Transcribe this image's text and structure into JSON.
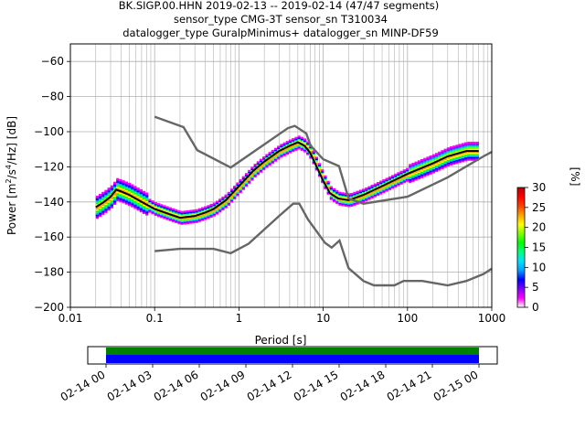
{
  "chart_data": {
    "type": "heatmap",
    "title_lines": [
      "BK.SIGP.00.HHN   2019-02-13 -- 2019-02-14  (47/47 segments)",
      "sensor_type CMG-3T sensor_sn T310034",
      "datalogger_type GuralpMinimus+ datalogger_sn MINP-DF59"
    ],
    "xlabel": "Period [s]",
    "ylabel_parts": [
      "Power [m",
      "2",
      "/s",
      "4",
      "/Hz] [dB]"
    ],
    "xscale": "log",
    "xlim": [
      0.01,
      1000
    ],
    "ylim": [
      -200,
      -50
    ],
    "xticks": [
      0.01,
      0.1,
      1,
      10,
      100,
      1000
    ],
    "xtick_labels": [
      "0.01",
      "0.1",
      "1",
      "10",
      "100",
      "1000"
    ],
    "yticks": [
      -200,
      -180,
      -160,
      -140,
      -120,
      -100,
      -80,
      -60
    ],
    "ytick_labels": [
      "−200",
      "−180",
      "−160",
      "−140",
      "−120",
      "−100",
      "−80",
      "−60"
    ],
    "grid": true,
    "colorbar": {
      "label": "[%]",
      "range": [
        0,
        30
      ],
      "ticks": [
        0,
        5,
        10,
        15,
        20,
        25,
        30
      ],
      "tick_labels": [
        "0",
        "5",
        "10",
        "15",
        "20",
        "25",
        "30"
      ],
      "colors": [
        "#ffffff",
        "#ff00ff",
        "#8000ff",
        "#0000ff",
        "#00a0ff",
        "#00e0ff",
        "#00ff80",
        "#00ff00",
        "#80ff00",
        "#ffff00",
        "#ffa000",
        "#ff4000",
        "#ff0000",
        "#b00000"
      ]
    },
    "series": [
      {
        "line_color": "#000000",
        "points": [
          [
            0.02,
            -143
          ],
          [
            0.025,
            -140
          ],
          [
            0.03,
            -137
          ],
          [
            0.035,
            -133
          ],
          [
            0.04,
            -134
          ],
          [
            0.05,
            -136
          ],
          [
            0.07,
            -140
          ],
          [
            0.1,
            -144
          ],
          [
            0.15,
            -147
          ],
          [
            0.2,
            -149
          ],
          [
            0.3,
            -148
          ],
          [
            0.4,
            -146
          ],
          [
            0.5,
            -144
          ],
          [
            0.7,
            -139
          ],
          [
            1,
            -131
          ],
          [
            1.5,
            -122
          ],
          [
            2,
            -117
          ],
          [
            3,
            -111
          ],
          [
            4,
            -108
          ],
          [
            5,
            -106
          ],
          [
            6,
            -108
          ],
          [
            7,
            -112
          ],
          [
            8,
            -118
          ],
          [
            10,
            -128
          ],
          [
            12,
            -135
          ],
          [
            15,
            -138
          ],
          [
            20,
            -139
          ],
          [
            30,
            -136
          ],
          [
            50,
            -131
          ],
          [
            100,
            -124
          ],
          [
            200,
            -118
          ],
          [
            300,
            -114
          ],
          [
            500,
            -111
          ],
          [
            700,
            -111
          ]
        ]
      },
      {
        "line_color": "#666666",
        "points": [
          [
            0.1,
            -91.5
          ],
          [
            0.22,
            -97.4
          ],
          [
            0.32,
            -110.5
          ],
          [
            0.8,
            -120.4
          ],
          [
            3.8,
            -98.0
          ],
          [
            4.6,
            -96.7
          ],
          [
            6.3,
            -101.0
          ],
          [
            7.1,
            -108.0
          ],
          [
            10,
            -115.7
          ],
          [
            15.4,
            -119.6
          ],
          [
            20,
            -138.0
          ],
          [
            30,
            -141.0
          ],
          [
            100,
            -137.0
          ],
          [
            300,
            -126.0
          ],
          [
            800,
            -114.0
          ],
          [
            1000,
            -111.5
          ]
        ]
      },
      {
        "line_color": "#666666",
        "points": [
          [
            0.1,
            -168.0
          ],
          [
            0.2,
            -166.7
          ],
          [
            0.5,
            -166.7
          ],
          [
            0.8,
            -169.2
          ],
          [
            1.3,
            -163.8
          ],
          [
            3.0,
            -148.0
          ],
          [
            4.4,
            -141.0
          ],
          [
            5.2,
            -141.0
          ],
          [
            6.6,
            -150.0
          ],
          [
            10.5,
            -163.3
          ],
          [
            12.6,
            -166.0
          ],
          [
            15.6,
            -162.0
          ],
          [
            20,
            -177.7
          ],
          [
            30,
            -185.0
          ],
          [
            40,
            -187.5
          ],
          [
            70,
            -187.5
          ],
          [
            90,
            -185.0
          ],
          [
            150,
            -185.0
          ],
          [
            300,
            -187.5
          ],
          [
            500,
            -185.0
          ],
          [
            800,
            -181.0
          ],
          [
            1000,
            -178.0
          ]
        ]
      }
    ],
    "availability": {
      "tick_labels": [
        "02-14 00",
        "02-14 03",
        "02-14 06",
        "02-14 09",
        "02-14 12",
        "02-14 15",
        "02-14 18",
        "02-14 21",
        "02-15 00"
      ],
      "data_color": "#008000",
      "gaps_color": "#0000ff"
    }
  }
}
